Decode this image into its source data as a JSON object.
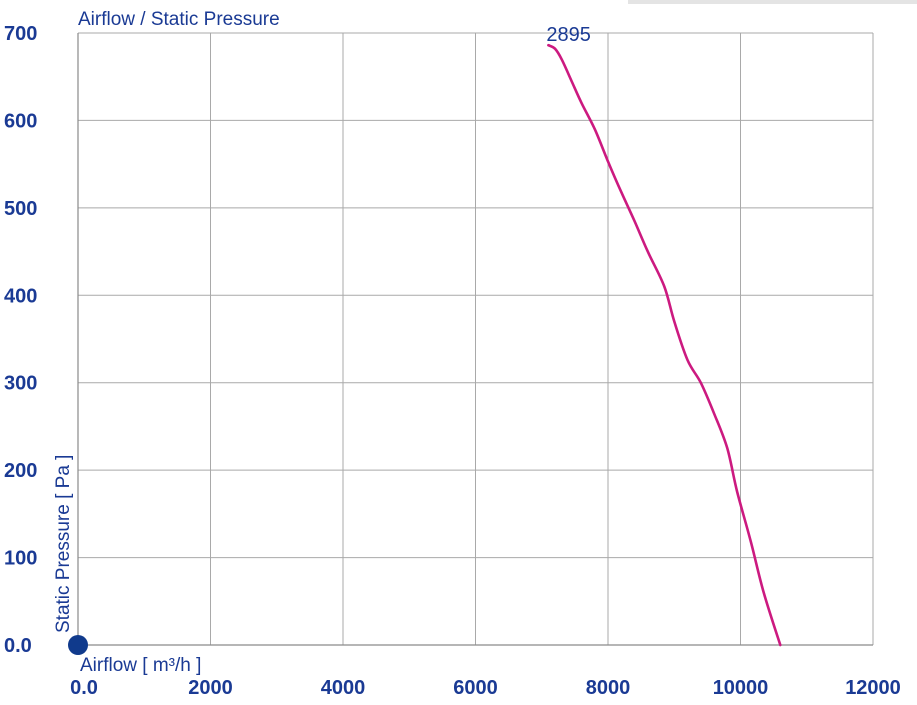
{
  "colors": {
    "text": "#1a3a94",
    "grid": "#a9a9a9",
    "curve": "#cc1a80",
    "origin_dot": "#103a8c"
  },
  "chart_data": {
    "type": "line",
    "title": "Airflow / Static Pressure",
    "xlabel": "Airflow [ m³/h ]",
    "ylabel": "Static Pressure [ Pa ]",
    "xlim": [
      0,
      12000
    ],
    "ylim": [
      0,
      700
    ],
    "x_ticks": [
      0,
      2000,
      4000,
      6000,
      8000,
      10000,
      12000
    ],
    "x_tick_labels": [
      "0.0",
      "2000",
      "4000",
      "6000",
      "8000",
      "10000",
      "12000"
    ],
    "y_ticks": [
      0,
      100,
      200,
      300,
      400,
      500,
      600,
      700
    ],
    "y_tick_labels": [
      "0.0",
      "100",
      "200",
      "300",
      "400",
      "500",
      "600",
      "700"
    ],
    "grid": true,
    "origin_marker": true,
    "series": [
      {
        "name": "2895",
        "color": "#cc1a80",
        "points": [
          [
            7100,
            686
          ],
          [
            7200,
            682
          ],
          [
            7300,
            670
          ],
          [
            7450,
            645
          ],
          [
            7600,
            620
          ],
          [
            7800,
            590
          ],
          [
            8000,
            553
          ],
          [
            8200,
            518
          ],
          [
            8400,
            485
          ],
          [
            8600,
            450
          ],
          [
            8850,
            410
          ],
          [
            9000,
            370
          ],
          [
            9200,
            326
          ],
          [
            9400,
            300
          ],
          [
            9600,
            265
          ],
          [
            9800,
            225
          ],
          [
            9950,
            175
          ],
          [
            10150,
            120
          ],
          [
            10350,
            60
          ],
          [
            10600,
            0
          ]
        ]
      }
    ]
  }
}
